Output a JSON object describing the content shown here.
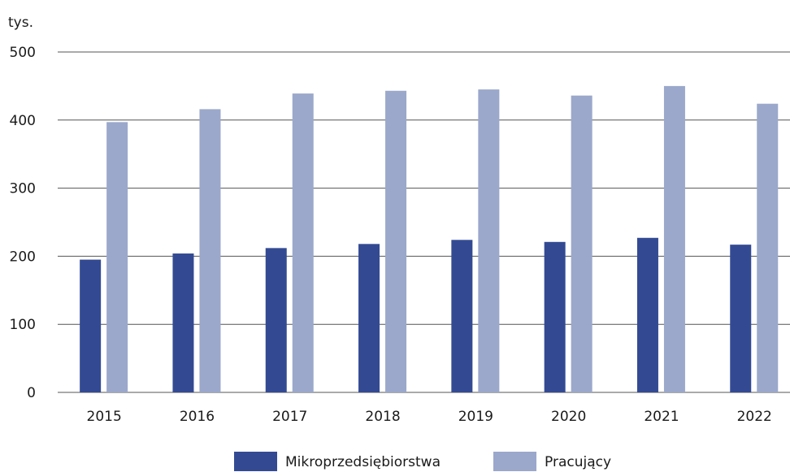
{
  "chart_data": {
    "type": "bar",
    "y_axis_label": "tys.",
    "categories": [
      "2015",
      "2016",
      "2017",
      "2018",
      "2019",
      "2020",
      "2021",
      "2022"
    ],
    "series": [
      {
        "name": "Mikroprzedsiębiorstwa",
        "color": "#334a93",
        "values": [
          195,
          204,
          212,
          218,
          224,
          221,
          227,
          217
        ]
      },
      {
        "name": "Pracujący",
        "color": "#9ba8cb",
        "values": [
          397,
          416,
          439,
          443,
          445,
          436,
          450,
          424
        ]
      }
    ],
    "ylim": [
      0,
      500
    ],
    "yticks": [
      0,
      100,
      200,
      300,
      400,
      500
    ],
    "grid": true,
    "legend": "bottom"
  }
}
